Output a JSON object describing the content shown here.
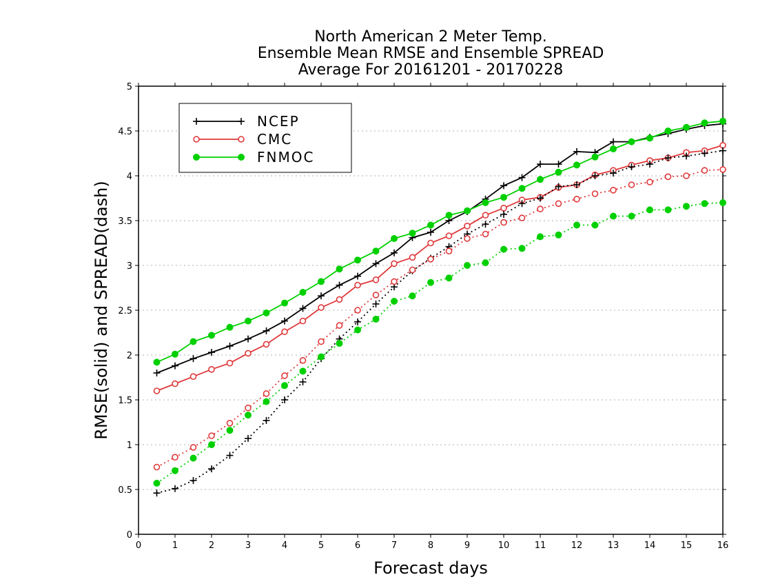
{
  "chart_data": {
    "type": "line",
    "title": [
      "North American 2 Meter Temp.",
      "Ensemble Mean RMSE and Ensemble SPREAD",
      "Average For 20161201 - 20170228"
    ],
    "xlabel": "Forecast days",
    "ylabel": "RMSE(solid) and SPREAD(dash)",
    "xlim": [
      0,
      16
    ],
    "ylim": [
      0,
      5
    ],
    "xticks": [
      "0",
      "1",
      "2",
      "3",
      "4",
      "5",
      "6",
      "7",
      "8",
      "9",
      "10",
      "11",
      "12",
      "13",
      "14",
      "15",
      "16"
    ],
    "yticks": [
      "0",
      "0.5",
      "1",
      "1.5",
      "2",
      "2.5",
      "3",
      "3.5",
      "4",
      "4.5",
      "5"
    ],
    "grid": true,
    "legend": "top-left",
    "x": [
      0.5,
      1,
      1.5,
      2,
      2.5,
      3,
      3.5,
      4,
      4.5,
      5,
      5.5,
      6,
      6.5,
      7,
      7.5,
      8,
      8.5,
      9,
      9.5,
      10,
      10.5,
      11,
      11.5,
      12,
      12.5,
      13,
      13.5,
      14,
      14.5,
      15,
      15.5,
      16
    ],
    "series": [
      {
        "name": "NCEP",
        "kind": "rmse",
        "color": "#000000",
        "marker": "plus",
        "values": [
          1.8,
          1.88,
          1.96,
          2.03,
          2.1,
          2.18,
          2.27,
          2.38,
          2.52,
          2.66,
          2.78,
          2.88,
          3.02,
          3.14,
          3.31,
          3.37,
          3.5,
          3.6,
          3.74,
          3.89,
          3.98,
          4.13,
          4.13,
          4.27,
          4.26,
          4.38,
          4.38,
          4.43,
          4.47,
          4.52,
          4.56,
          4.58
        ]
      },
      {
        "name": "CMC",
        "kind": "rmse",
        "color": "#e0383a",
        "marker": "circle",
        "values": [
          1.6,
          1.68,
          1.76,
          1.84,
          1.91,
          2.02,
          2.12,
          2.26,
          2.38,
          2.53,
          2.62,
          2.78,
          2.84,
          3.02,
          3.09,
          3.25,
          3.33,
          3.44,
          3.56,
          3.64,
          3.73,
          3.76,
          3.87,
          3.9,
          4.01,
          4.06,
          4.12,
          4.17,
          4.2,
          4.26,
          4.28,
          4.34
        ]
      },
      {
        "name": "FNMOC",
        "kind": "rmse",
        "color": "#00d000",
        "marker": "dot",
        "values": [
          1.92,
          2.01,
          2.15,
          2.22,
          2.31,
          2.38,
          2.47,
          2.58,
          2.7,
          2.82,
          2.96,
          3.06,
          3.16,
          3.3,
          3.36,
          3.45,
          3.56,
          3.61,
          3.7,
          3.76,
          3.86,
          3.96,
          4.04,
          4.12,
          4.21,
          4.3,
          4.38,
          4.42,
          4.5,
          4.54,
          4.59,
          4.61
        ]
      },
      {
        "name": "",
        "kind": "spread",
        "color": "#000000",
        "marker": "plus",
        "values": [
          0.46,
          0.51,
          0.6,
          0.73,
          0.88,
          1.07,
          1.27,
          1.5,
          1.7,
          1.96,
          2.18,
          2.37,
          2.57,
          2.76,
          2.94,
          3.08,
          3.21,
          3.35,
          3.46,
          3.57,
          3.69,
          3.75,
          3.88,
          3.9,
          4.0,
          4.03,
          4.1,
          4.13,
          4.2,
          4.22,
          4.25,
          4.28
        ]
      },
      {
        "name": "",
        "kind": "spread",
        "color": "#e0383a",
        "marker": "circle",
        "values": [
          0.75,
          0.86,
          0.97,
          1.1,
          1.24,
          1.41,
          1.57,
          1.77,
          1.94,
          2.15,
          2.33,
          2.5,
          2.67,
          2.82,
          2.95,
          3.07,
          3.16,
          3.3,
          3.35,
          3.48,
          3.53,
          3.63,
          3.69,
          3.74,
          3.8,
          3.84,
          3.9,
          3.93,
          3.99,
          4.0,
          4.06,
          4.07
        ]
      },
      {
        "name": "",
        "kind": "spread",
        "color": "#00d000",
        "marker": "dot",
        "values": [
          0.57,
          0.71,
          0.85,
          1.0,
          1.16,
          1.33,
          1.48,
          1.66,
          1.82,
          1.98,
          2.13,
          2.28,
          2.4,
          2.6,
          2.66,
          2.81,
          2.86,
          3.0,
          3.03,
          3.18,
          3.19,
          3.32,
          3.34,
          3.45,
          3.45,
          3.55,
          3.55,
          3.62,
          3.62,
          3.66,
          3.69,
          3.7
        ]
      }
    ]
  }
}
